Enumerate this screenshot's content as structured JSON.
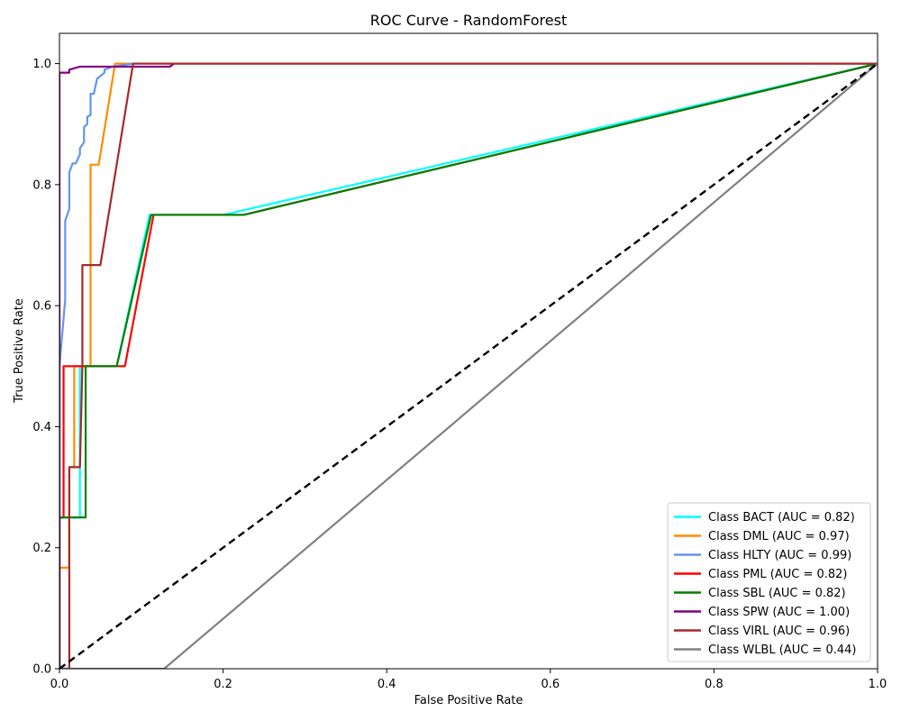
{
  "chart_data": {
    "type": "line",
    "title": "ROC Curve - RandomForest",
    "xlabel": "False Positive Rate",
    "ylabel": "True Positive Rate",
    "xlim": [
      0.0,
      1.0
    ],
    "ylim": [
      0.0,
      1.05
    ],
    "xticks": [
      "0.0",
      "0.2",
      "0.4",
      "0.6",
      "0.8",
      "1.0"
    ],
    "yticks": [
      "0.0",
      "0.2",
      "0.4",
      "0.6",
      "0.8",
      "1.0"
    ],
    "grid": false,
    "legend_position": "lower-right",
    "series": [
      {
        "name": "Class BACT (AUC = 0.82)",
        "color": "#00FFFF",
        "x": [
          0.0,
          0.0,
          0.025,
          0.025,
          0.07,
          0.11,
          0.2,
          1.0
        ],
        "y": [
          0.0,
          0.25,
          0.25,
          0.5,
          0.5,
          0.75,
          0.75,
          1.0
        ]
      },
      {
        "name": "Class DML (AUC = 0.97)",
        "color": "#FF8C00",
        "x": [
          0.0,
          0.0,
          0.012,
          0.012,
          0.018,
          0.018,
          0.038,
          0.038,
          0.048,
          0.048,
          0.068,
          1.0
        ],
        "y": [
          0.0,
          0.167,
          0.167,
          0.333,
          0.333,
          0.5,
          0.5,
          0.833,
          0.833,
          0.833,
          1.0,
          1.0
        ]
      },
      {
        "name": "Class HLTY (AUC = 0.99)",
        "color": "#6495ED",
        "x": [
          0.0,
          0.0,
          0.007,
          0.007,
          0.012,
          0.012,
          0.016,
          0.02,
          0.025,
          0.025,
          0.03,
          0.03,
          0.034,
          0.034,
          0.038,
          0.038,
          0.042,
          0.042,
          0.046,
          0.046,
          0.055,
          0.055,
          0.065,
          0.09,
          1.0
        ],
        "y": [
          0.0,
          0.5,
          0.61,
          0.74,
          0.76,
          0.82,
          0.835,
          0.835,
          0.85,
          0.86,
          0.87,
          0.895,
          0.9,
          0.912,
          0.915,
          0.95,
          0.95,
          0.95,
          0.975,
          0.975,
          0.985,
          0.99,
          0.995,
          1.0,
          1.0
        ]
      },
      {
        "name": "Class PML (AUC = 0.82)",
        "color": "#FF0000",
        "x": [
          0.0,
          0.0,
          0.005,
          0.005,
          0.08,
          0.115,
          0.225,
          1.0
        ],
        "y": [
          0.0,
          0.25,
          0.25,
          0.5,
          0.5,
          0.75,
          0.75,
          1.0
        ]
      },
      {
        "name": "Class SBL (AUC = 0.82)",
        "color": "#008000",
        "x": [
          0.0,
          0.0,
          0.032,
          0.032,
          0.07,
          0.112,
          0.225,
          1.0
        ],
        "y": [
          0.0,
          0.25,
          0.25,
          0.5,
          0.5,
          0.75,
          0.75,
          1.0
        ]
      },
      {
        "name": "Class SPW (AUC = 1.00)",
        "color": "#800080",
        "x": [
          0.0,
          0.0,
          0.012,
          0.012,
          0.025,
          0.135,
          0.14,
          1.0
        ],
        "y": [
          0.0,
          0.985,
          0.985,
          0.99,
          0.995,
          0.995,
          1.0,
          1.0
        ]
      },
      {
        "name": "Class VIRL (AUC = 0.96)",
        "color": "#A52A2A",
        "x": [
          0.0,
          0.012,
          0.012,
          0.025,
          0.028,
          0.028,
          0.05,
          0.09,
          1.0
        ],
        "y": [
          0.0,
          0.0,
          0.333,
          0.333,
          0.5,
          0.667,
          0.667,
          1.0,
          1.0
        ]
      },
      {
        "name": "Class WLBL (AUC = 0.44)",
        "color": "#808080",
        "x": [
          0.0,
          0.128,
          1.0
        ],
        "y": [
          0.0,
          0.0,
          1.0
        ]
      }
    ],
    "reference_line": {
      "x": [
        0.0,
        1.0
      ],
      "y": [
        0.0,
        1.0
      ],
      "color": "#000000",
      "style": "dashed"
    }
  }
}
